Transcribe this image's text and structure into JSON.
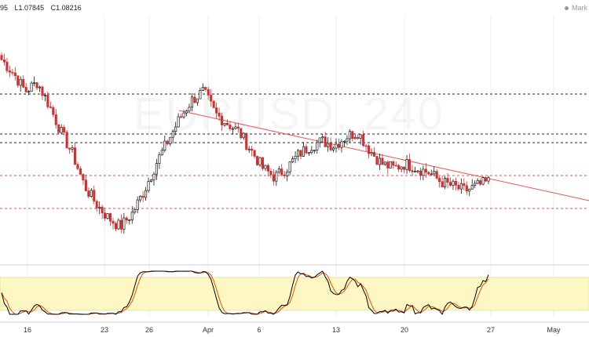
{
  "header": {
    "ohlc": [
      "95",
      "L1.07845",
      "C1.08216"
    ],
    "market_label": "Mark"
  },
  "watermark": "EURUSD, 240",
  "chart_data": {
    "type": "candlestick",
    "title": "",
    "x_tick_labels": [
      "16",
      "23",
      "26",
      "Apr",
      "6",
      "13",
      "20",
      "27",
      "May"
    ],
    "horizontal_levels": [
      {
        "style": "dashed",
        "color": "#000000",
        "role": "resistance"
      },
      {
        "style": "dashed",
        "color": "#000000",
        "role": "resistance"
      },
      {
        "style": "dashed",
        "color": "#000000",
        "role": "resistance"
      },
      {
        "style": "dashed",
        "color": "#e53935",
        "role": "upper-range"
      },
      {
        "style": "dashed",
        "color": "#e53935",
        "role": "lower-range"
      }
    ],
    "trendline": {
      "color": "#ef5350",
      "style": "solid"
    },
    "candles_close_path": [
      1.104,
      1.101,
      1.097,
      1.099,
      1.094,
      1.088,
      1.083,
      1.076,
      1.072,
      1.069,
      1.067,
      1.07,
      1.075,
      1.081,
      1.086,
      1.091,
      1.095,
      1.097,
      1.092,
      1.09,
      1.088,
      1.084,
      1.08,
      1.078,
      1.08,
      1.083,
      1.085,
      1.086,
      1.085,
      1.087,
      1.088,
      1.084,
      1.081,
      1.08,
      1.081,
      1.08,
      1.079,
      1.077,
      1.076,
      1.075,
      1.076,
      1.077
    ],
    "candle_count": 180,
    "oscillator": {
      "type": "stochastic",
      "band_fill": "#fdf7c3",
      "k_color": "#000000",
      "d_color": "#e65100"
    }
  },
  "colors": {
    "bull": "#1a1a1a",
    "bear": "#d32f2f",
    "grid": "#eeeeee",
    "axis_text": "#333333"
  }
}
